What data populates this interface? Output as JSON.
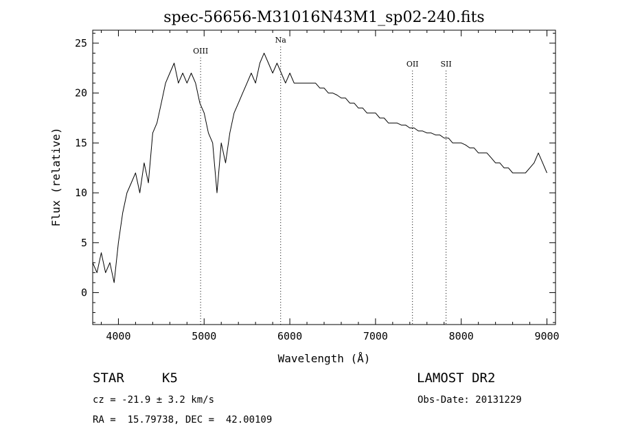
{
  "chart_data": {
    "type": "line",
    "title": "spec-56656-M31016N43M1_sp02-240.fits",
    "xlabel": "Wavelength (Å)",
    "ylabel": "Flux (relative)",
    "xlim": [
      3700,
      9100
    ],
    "ylim": [
      -3.2,
      26.3
    ],
    "xticks": [
      4000,
      5000,
      6000,
      7000,
      8000,
      9000
    ],
    "yticks": [
      0,
      5,
      10,
      15,
      20,
      25
    ],
    "grid": false,
    "series": [
      {
        "x": [
          3700,
          3750,
          3800,
          3850,
          3900,
          3950,
          4000,
          4050,
          4100,
          4150,
          4200,
          4250,
          4300,
          4350,
          4400,
          4450,
          4500,
          4550,
          4600,
          4650,
          4700,
          4750,
          4800,
          4850,
          4900,
          4950,
          5000,
          5050,
          5100,
          5150,
          5200,
          5250,
          5300,
          5350,
          5400,
          5450,
          5500,
          5550,
          5600,
          5650,
          5700,
          5750,
          5800,
          5850,
          5900,
          5950,
          6000,
          6050,
          6100,
          6150,
          6200,
          6250,
          6300,
          6350,
          6400,
          6450,
          6500,
          6550,
          6600,
          6650,
          6700,
          6750,
          6800,
          6850,
          6900,
          6950,
          7000,
          7050,
          7100,
          7150,
          7200,
          7250,
          7300,
          7350,
          7400,
          7450,
          7500,
          7550,
          7600,
          7650,
          7700,
          7750,
          7800,
          7850,
          7900,
          7950,
          8000,
          8050,
          8100,
          8150,
          8200,
          8250,
          8300,
          8350,
          8400,
          8450,
          8500,
          8550,
          8600,
          8650,
          8700,
          8750,
          8800,
          8850,
          8900,
          8950,
          9000
        ],
        "y": [
          3,
          2,
          4,
          2,
          3,
          1,
          5,
          8,
          10,
          11,
          12,
          10,
          13,
          11,
          16,
          17,
          19,
          21,
          22,
          23,
          21,
          22,
          21,
          22,
          21,
          19,
          18,
          16,
          15,
          10,
          15,
          13,
          16,
          18,
          19,
          20,
          21,
          22,
          21,
          23,
          24,
          23,
          22,
          23,
          22,
          21,
          22,
          21,
          21,
          21,
          21,
          21,
          21,
          20.5,
          20.5,
          20,
          20,
          19.8,
          19.5,
          19.5,
          19,
          19,
          18.5,
          18.5,
          18,
          18,
          18,
          17.5,
          17.5,
          17,
          17,
          17,
          16.8,
          16.8,
          16.5,
          16.5,
          16.2,
          16.2,
          16,
          16,
          15.8,
          15.8,
          15.5,
          15.5,
          15,
          15,
          15,
          14.8,
          14.5,
          14.5,
          14,
          14,
          14,
          13.5,
          13,
          13,
          12.5,
          12.5,
          12,
          12,
          12,
          12,
          12.5,
          13,
          14,
          13,
          12
        ]
      }
    ],
    "line_markers": [
      {
        "label": "OIII",
        "x": 4959
      },
      {
        "label": "Na",
        "x": 5893
      },
      {
        "label": "OII",
        "x": 7431
      },
      {
        "label": "SII",
        "x": 7823
      }
    ]
  },
  "info": {
    "class_label": "STAR",
    "subclass": "K5",
    "survey": "LAMOST DR2",
    "cz": "cz = -21.9 ± 3.2 km/s",
    "obs_date": "Obs-Date: 20131229",
    "coords": "RA =  15.79738, DEC =  42.00109"
  }
}
